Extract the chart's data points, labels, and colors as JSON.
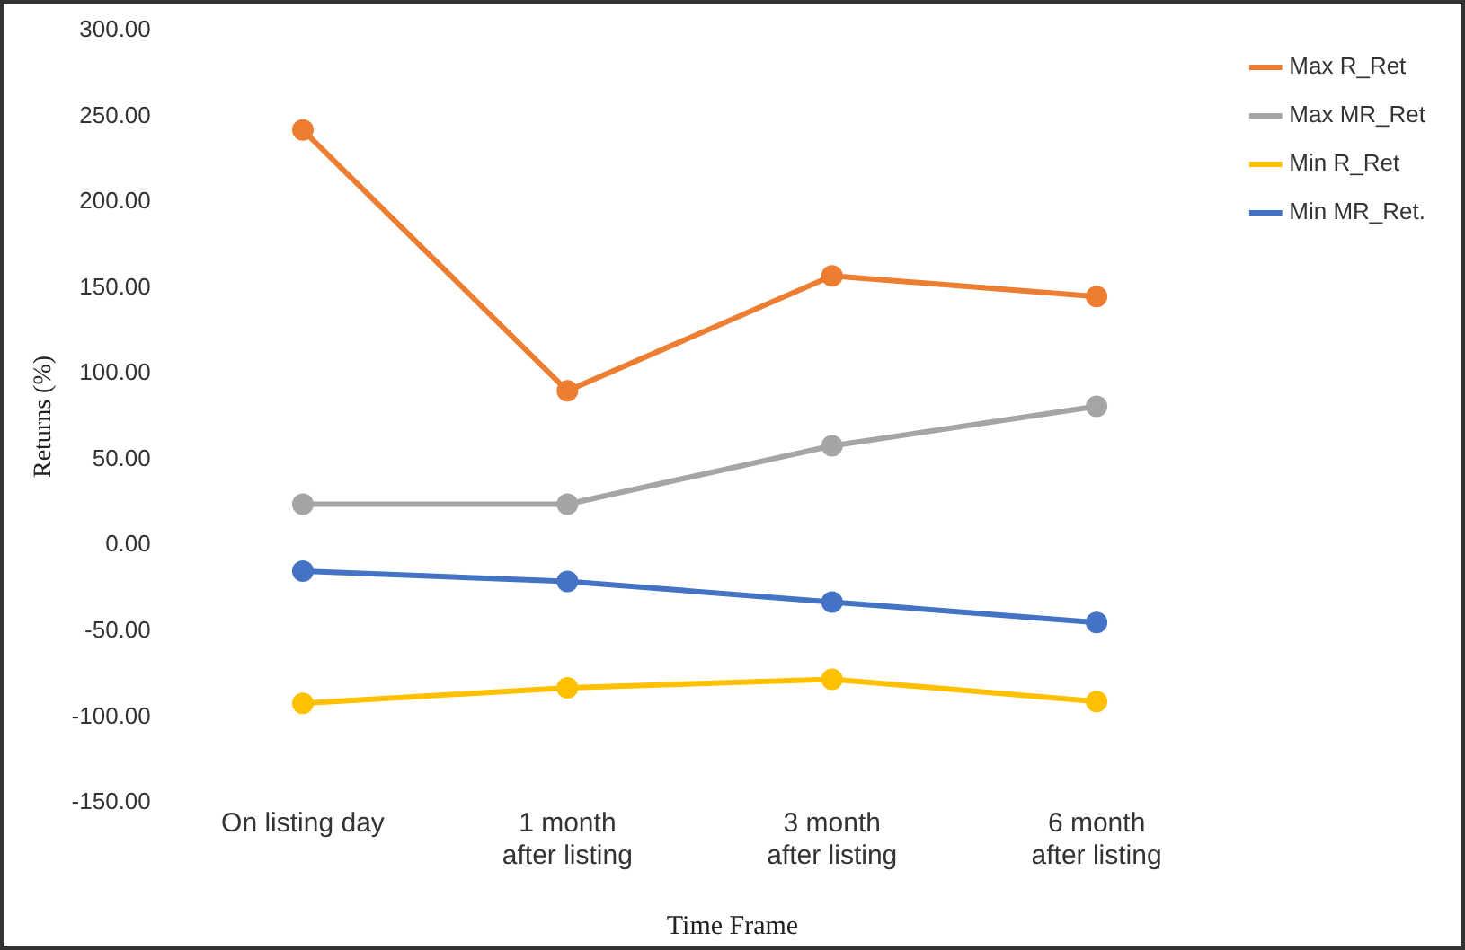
{
  "chart_data": {
    "type": "line",
    "xlabel": "Time Frame",
    "ylabel": "Returns (%)",
    "categories": [
      "On listing day",
      "1 month after listing",
      "3 month after listing",
      "6 month after listing"
    ],
    "series": [
      {
        "name": "Max R_Ret",
        "color": "#ed7d31",
        "values": [
          242,
          90,
          157,
          145
        ]
      },
      {
        "name": "Max MR_Ret",
        "color": "#a5a5a5",
        "values": [
          24,
          24,
          58,
          81
        ]
      },
      {
        "name": "Min R_Ret",
        "color": "#ffc000",
        "values": [
          -92,
          -83,
          -78,
          -91
        ]
      },
      {
        "name": "Min MR_Ret.",
        "color": "#4472c4",
        "values": [
          -15,
          -21,
          -33,
          -45
        ]
      }
    ],
    "ylim": [
      -150,
      300
    ],
    "yticks": [
      {
        "value": -150,
        "label": "-150.00"
      },
      {
        "value": -100,
        "label": "-100.00"
      },
      {
        "value": -50,
        "label": "-50.00"
      },
      {
        "value": 0,
        "label": "0.00"
      },
      {
        "value": 50,
        "label": "50.00"
      },
      {
        "value": 100,
        "label": "100.00"
      },
      {
        "value": 150,
        "label": "150.00"
      },
      {
        "value": 200,
        "label": "200.00"
      },
      {
        "value": 250,
        "label": "250.00"
      },
      {
        "value": 300,
        "label": "300.00"
      }
    ],
    "grid": false,
    "legend": "top right",
    "marker": "circle",
    "line_style": "solid"
  }
}
